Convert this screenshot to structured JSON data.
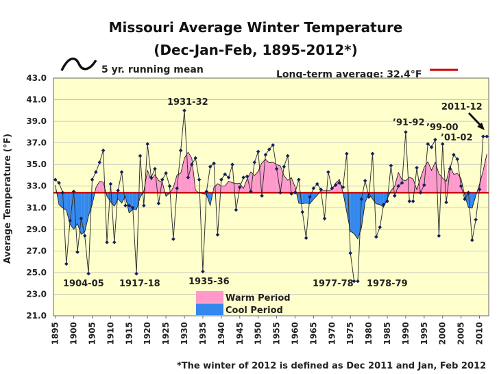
{
  "chart_data": {
    "type": "line",
    "title": "Missouri Average Winter Temperature",
    "subtitle": "(Dec-Jan-Feb, 1895-2012*)",
    "ylabel": "Average Temperature (°F)",
    "xlabel": "",
    "xlim": [
      1895,
      2012
    ],
    "ylim": [
      21,
      43
    ],
    "yticks": [
      "21.0",
      "23.0",
      "25.0",
      "27.0",
      "29.0",
      "31.0",
      "33.0",
      "35.0",
      "37.0",
      "39.0",
      "41.0",
      "43.0"
    ],
    "xticks": [
      "1895",
      "1900",
      "1905",
      "1910",
      "1915",
      "1920",
      "1925",
      "1930",
      "1935",
      "1940",
      "1945",
      "1950",
      "1955",
      "1960",
      "1965",
      "1970",
      "1975",
      "1980",
      "1985",
      "1990",
      "1995",
      "2000",
      "2005",
      "2010"
    ],
    "long_term_average": 32.4,
    "legend_mean_label": "5 yr. running mean",
    "legend_avg_label": "Long-term average: 32.4°F",
    "legend_warm_label": "Warm Period",
    "legend_cool_label": "Cool Period",
    "footnote": "*The winter of 2012 is defined as Dec 2011 and Jan, Feb 2012",
    "colors": {
      "warm": "#ff99cc",
      "cool": "#3388ee",
      "average": "#cc0000",
      "plot_bg": "#ffffcc",
      "points": "#102060"
    },
    "series": [
      {
        "x": [
          1895,
          1896,
          1897,
          1898,
          1899,
          1900,
          1901,
          1902,
          1903,
          1904,
          1905,
          1906,
          1907,
          1908,
          1909,
          1910,
          1911,
          1912,
          1913,
          1914,
          1915,
          1916,
          1917,
          1918,
          1919,
          1920,
          1921,
          1922,
          1923,
          1924,
          1925,
          1926,
          1927,
          1928,
          1929,
          1930,
          1931,
          1932,
          1933,
          1934,
          1935,
          1936,
          1937,
          1938,
          1939,
          1940,
          1941,
          1942,
          1943,
          1944,
          1945,
          1946,
          1947,
          1948,
          1949,
          1950,
          1951,
          1952,
          1953,
          1954,
          1955,
          1956,
          1957,
          1958,
          1959,
          1960,
          1961,
          1962,
          1963,
          1964,
          1965,
          1966,
          1967,
          1968,
          1969,
          1970,
          1971,
          1972,
          1973,
          1974,
          1975,
          1976,
          1977,
          1978,
          1979,
          1980,
          1981,
          1982,
          1983,
          1984,
          1985,
          1986,
          1987,
          1988,
          1989,
          1990,
          1991,
          1992,
          1993,
          1994,
          1995,
          1996,
          1997,
          1998,
          1999,
          2000,
          2001,
          2002,
          2003,
          2004,
          2005,
          2006,
          2007,
          2008,
          2009,
          2010,
          2011,
          2012
        ],
        "values": [
          33.6,
          33.3,
          32.4,
          25.8,
          29.8,
          32.5,
          26.9,
          30.0,
          28.4,
          24.9,
          33.6,
          34.3,
          35.2,
          36.3,
          27.8,
          33.2,
          27.8,
          32.6,
          34.3,
          31.2,
          31.2,
          31.0,
          24.9,
          35.8,
          31.2,
          36.9,
          33.8,
          34.6,
          31.4,
          33.6,
          34.2,
          33.0,
          28.1,
          32.8,
          36.3,
          40.0,
          33.8,
          35.0,
          35.6,
          33.6,
          25.1,
          32.5,
          34.8,
          35.1,
          28.5,
          33.6,
          34.1,
          33.8,
          35.0,
          30.8,
          32.9,
          33.8,
          33.9,
          32.5,
          35.2,
          36.2,
          32.1,
          35.9,
          36.4,
          36.8,
          34.6,
          32.4,
          34.8,
          35.8,
          32.3,
          32.4,
          33.6,
          30.6,
          28.2,
          32.0,
          32.8,
          33.2,
          32.7,
          30.0,
          34.3,
          32.8,
          33.1,
          33.3,
          32.9,
          36.0,
          26.8,
          24.2,
          24.2,
          31.8,
          33.5,
          32.0,
          36.0,
          28.3,
          29.2,
          31.3,
          31.6,
          34.9,
          32.1,
          33.0,
          33.3,
          38.0,
          31.6,
          31.6,
          34.7,
          32.4,
          33.1,
          36.9,
          36.6,
          37.3,
          28.4,
          36.9,
          31.5,
          34.6,
          35.9,
          35.5,
          33.0,
          31.8,
          32.4,
          28.0,
          29.9,
          32.7,
          37.6,
          37.6
        ]
      }
    ],
    "annotations": [
      {
        "text": "1931-32",
        "x": 1931.5,
        "y": 40.0
      },
      {
        "text": "1904-05",
        "x": 1904.5,
        "y": 24.9
      },
      {
        "text": "1917-18",
        "x": 1917.5,
        "y": 24.9
      },
      {
        "text": "1935-36",
        "x": 1935.5,
        "y": 25.1
      },
      {
        "text": "1977-78",
        "x": 1977.5,
        "y": 24.2
      },
      {
        "text": "1978-79",
        "x": 1978.5,
        "y": 24.2
      },
      {
        "text": "’91-92",
        "x": 1991.5,
        "y": 38.0
      },
      {
        "text": "’99-00",
        "x": 1999.5,
        "y": 37.3
      },
      {
        "text": "’01-02",
        "x": 2001.5,
        "y": 36.9
      },
      {
        "text": "2011-12",
        "x": 2011.5,
        "y": 37.6
      }
    ]
  }
}
